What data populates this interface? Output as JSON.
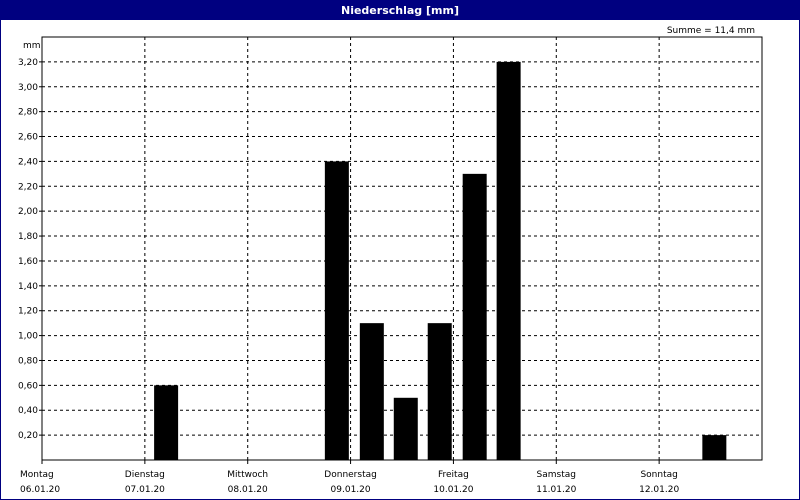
{
  "window": {
    "title": "Niederschlag [mm]"
  },
  "summary": "Summe = 11,4 mm",
  "chart_data": {
    "type": "bar",
    "title": "Niederschlag [mm]",
    "ylabel": "mm",
    "xlabel": "",
    "ylim": [
      0,
      3.4
    ],
    "grid": true,
    "y_ticks": [
      "0,20",
      "0,40",
      "0,60",
      "0,80",
      "1,00",
      "1,20",
      "1,40",
      "1,60",
      "1,80",
      "2,00",
      "2,20",
      "2,40",
      "2,60",
      "2,80",
      "3,00",
      "3,20"
    ],
    "days": [
      {
        "name": "Montag",
        "date": "06.01.20"
      },
      {
        "name": "Dienstag",
        "date": "07.01.20"
      },
      {
        "name": "Mittwoch",
        "date": "08.01.20"
      },
      {
        "name": "Donnerstag",
        "date": "09.01.20"
      },
      {
        "name": "Freitag",
        "date": "10.01.20"
      },
      {
        "name": "Samstag",
        "date": "11.01.20"
      },
      {
        "name": "Sonntag",
        "date": "12.01.20"
      }
    ],
    "x_range_days": [
      0,
      7
    ],
    "bars": [
      {
        "day": 1.09,
        "value": 0.6
      },
      {
        "day": 2.75,
        "value": 2.4
      },
      {
        "day": 3.09,
        "value": 1.1
      },
      {
        "day": 3.42,
        "value": 0.5
      },
      {
        "day": 3.75,
        "value": 1.1
      },
      {
        "day": 4.09,
        "value": 2.3
      },
      {
        "day": 4.42,
        "value": 3.2
      },
      {
        "day": 6.42,
        "value": 0.2
      }
    ],
    "bar_color": "#000000"
  }
}
